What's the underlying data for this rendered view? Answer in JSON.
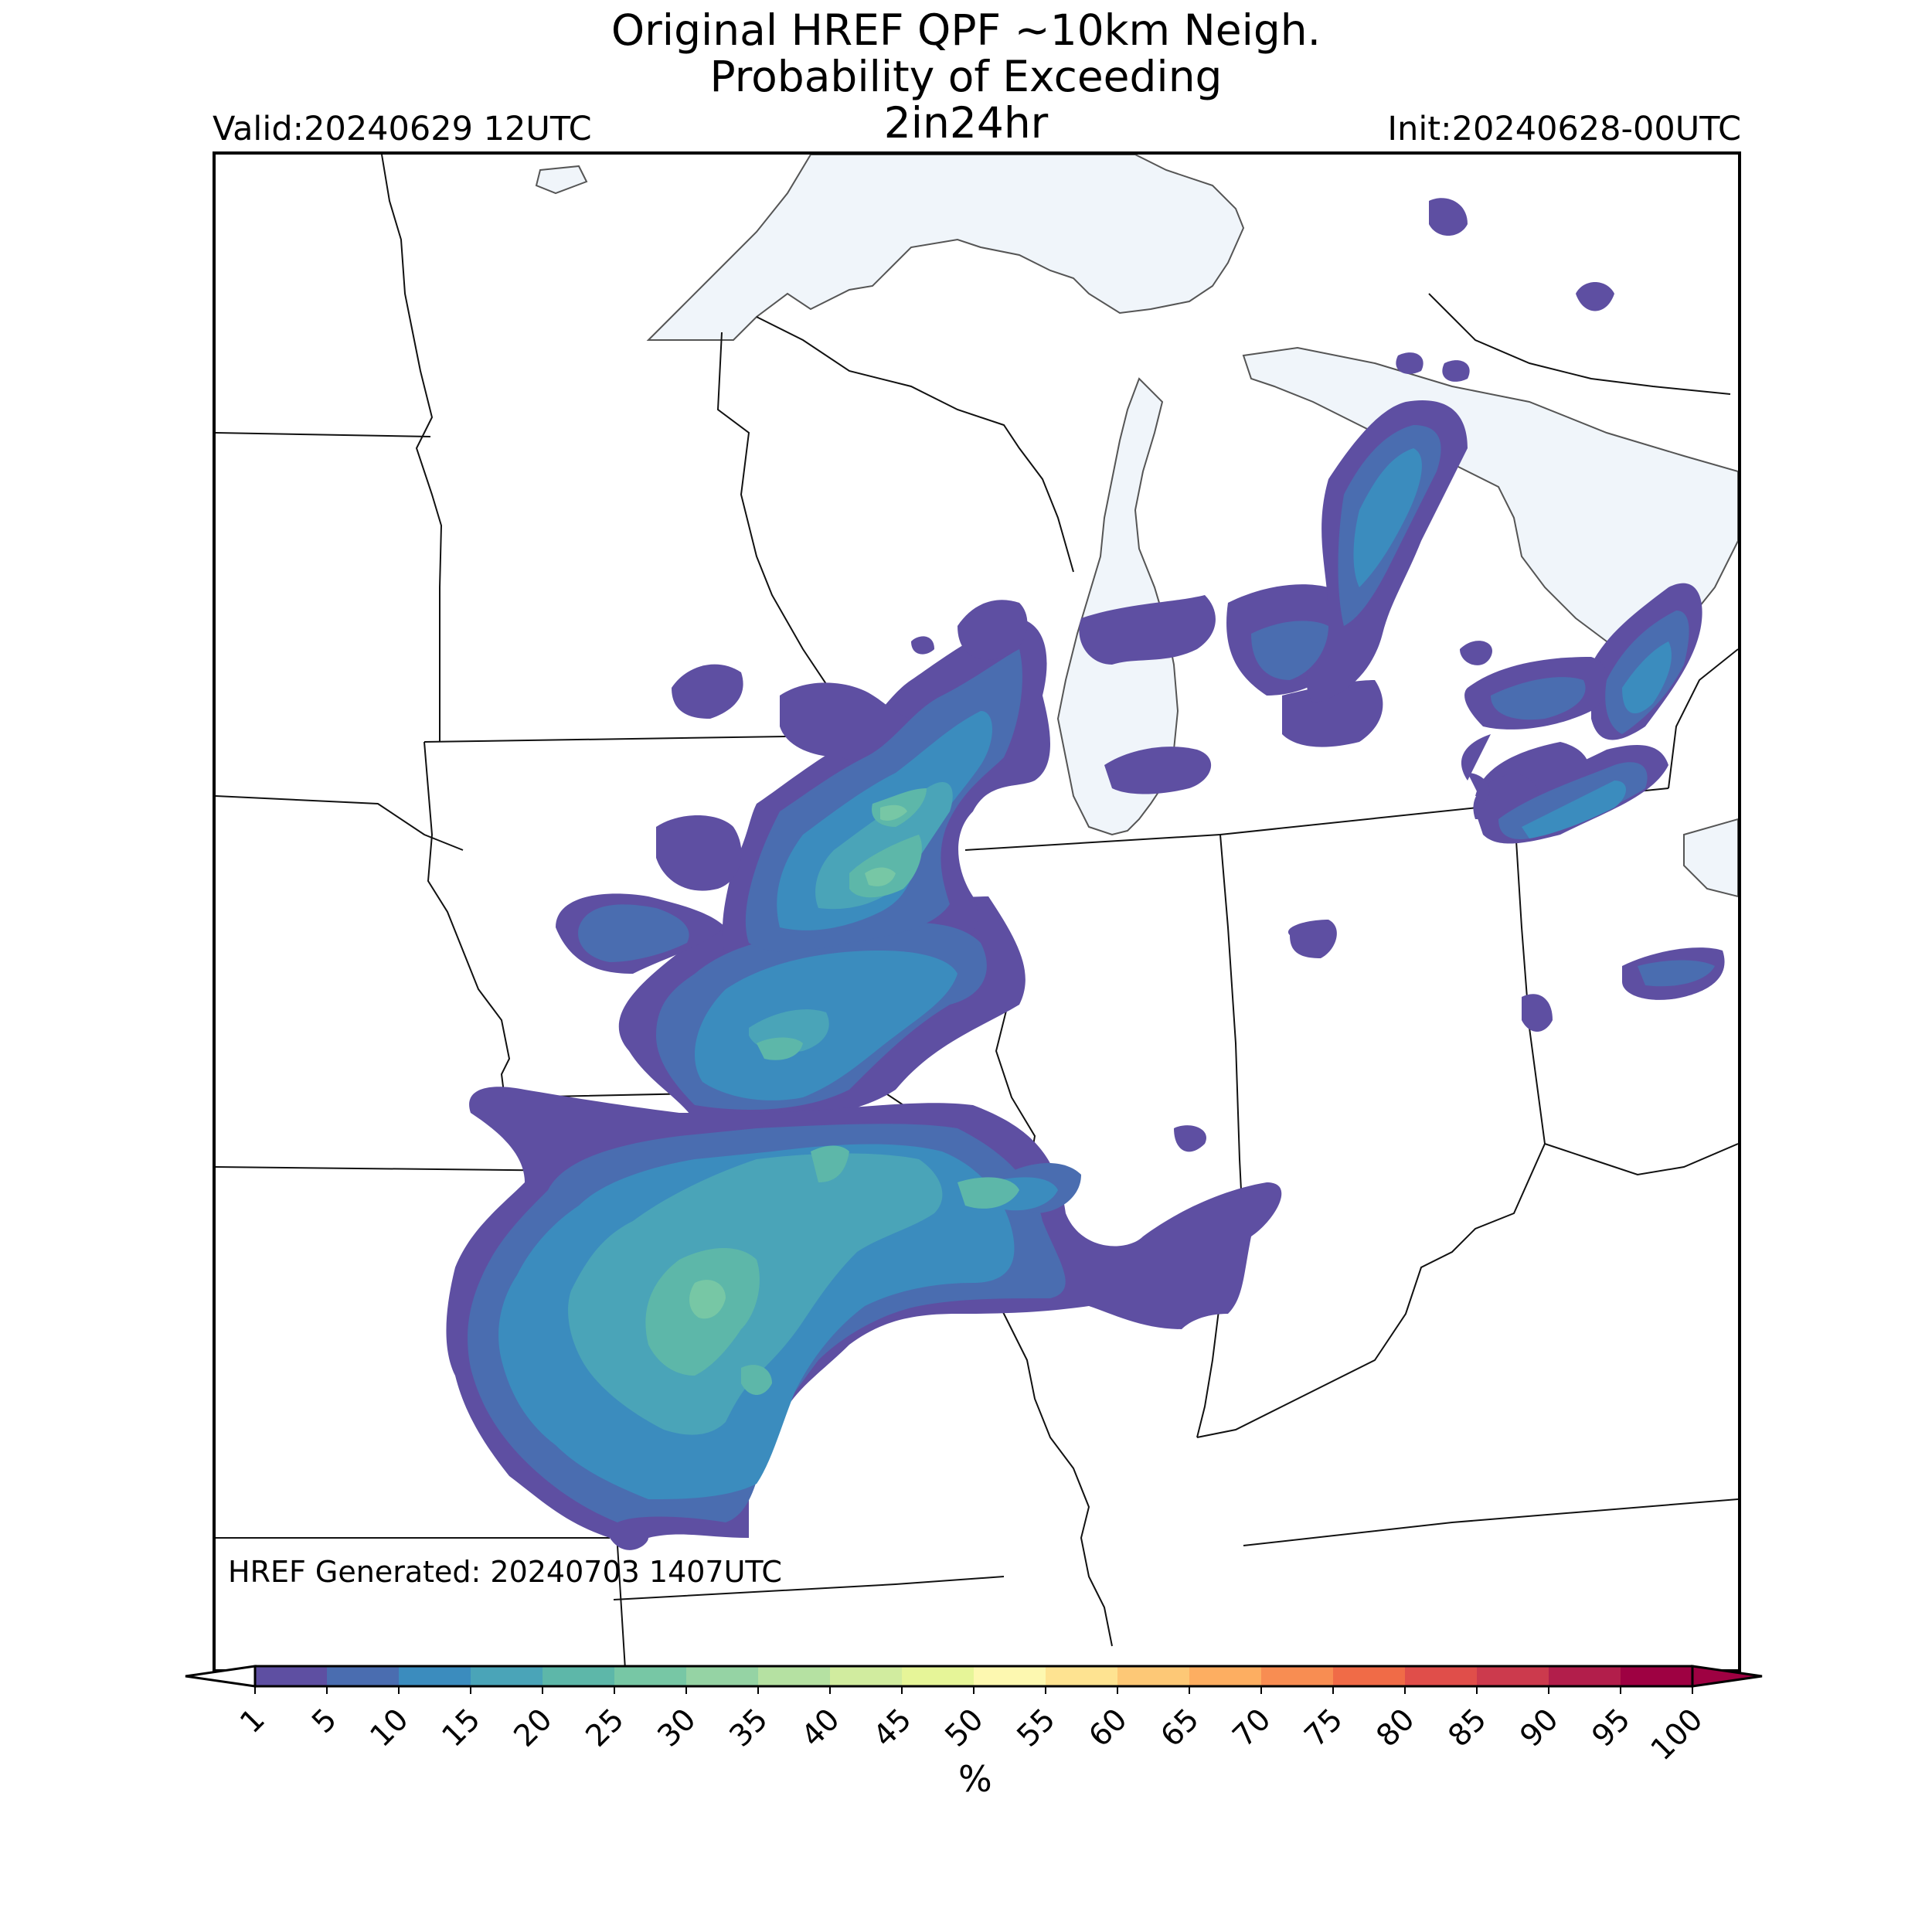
{
  "header": {
    "title_line1": "Original HREF QPF ~10km Neigh.",
    "title_line2": "Probability of Exceeding",
    "title_line3": "2in24hr",
    "valid": "Valid:20240629 12UTC",
    "init": "Init:20240628-00UTC"
  },
  "footer": {
    "generated": "HREF Generated: 20240703 1407UTC"
  },
  "colorbar": {
    "unit_label": "%",
    "ticks": [
      "1",
      "5",
      "10",
      "15",
      "20",
      "25",
      "30",
      "35",
      "40",
      "45",
      "50",
      "55",
      "60",
      "65",
      "70",
      "75",
      "80",
      "85",
      "90",
      "95",
      "100"
    ],
    "colors": [
      "#5e4fa2",
      "#4a6db0",
      "#3b8cbe",
      "#4aa4b8",
      "#5db7a9",
      "#77c7a5",
      "#95d3a4",
      "#b5e1a2",
      "#d1ec9f",
      "#e6f598",
      "#fdf8b0",
      "#fee391",
      "#fdc876",
      "#fdae61",
      "#f88d52",
      "#f06b47",
      "#e04e4a",
      "#cc3a4d",
      "#b21e4b",
      "#9e0142"
    ]
  },
  "map": {
    "lake_color": "#f0f5fa",
    "probability_levels": [
      "5",
      "10",
      "15",
      "20",
      "25",
      "30"
    ]
  }
}
